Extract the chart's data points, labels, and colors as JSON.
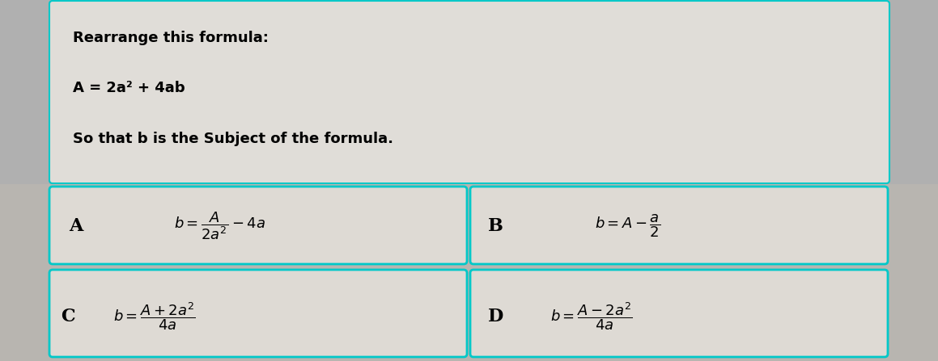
{
  "title_line1": "Rearrange this formula:",
  "formula": "A = 2a² + 4ab",
  "subtitle": "So that b is the Subject of the formula.",
  "bg_outer": "#b0b0b0",
  "bg_top_box": "#e0ddd8",
  "bg_bottom": "#b8b5b0",
  "box_bg": "#dedad4",
  "box_border_color": "#00c8c8",
  "top_border_color": "#00c8c8",
  "font_size_title": 13,
  "font_size_formula": 13,
  "font_size_subtitle": 13,
  "font_size_math": 13,
  "font_size_label": 14
}
